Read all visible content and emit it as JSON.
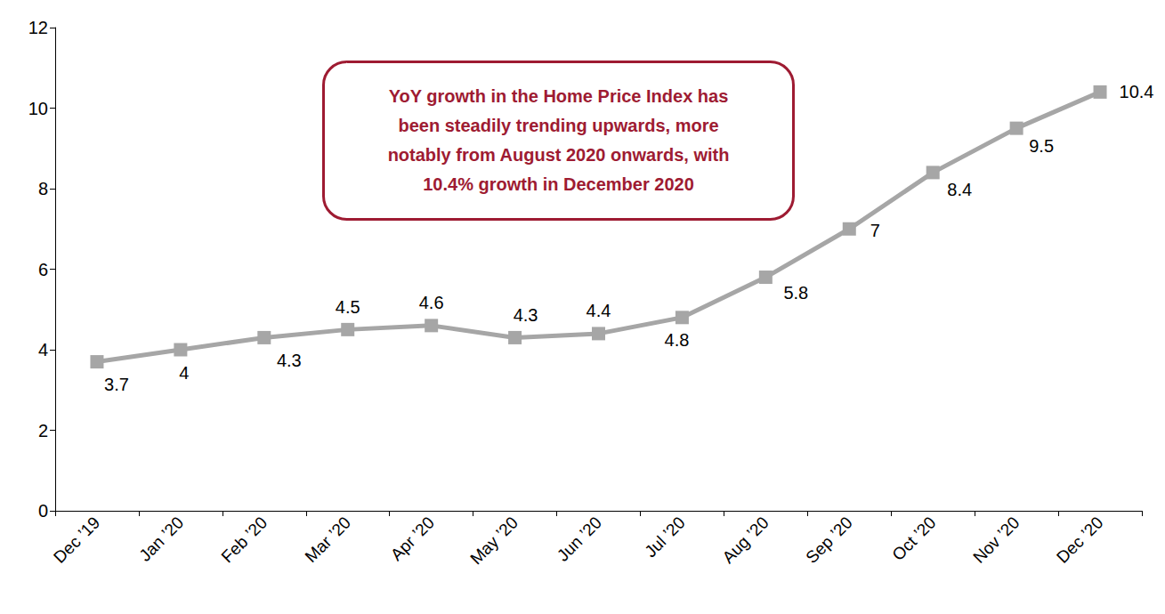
{
  "chart_data": {
    "type": "line",
    "categories": [
      "Dec ’19",
      "Jan ’20",
      "Feb ’20",
      "Mar ’20",
      "Apr ’20",
      "May ’20",
      "Jun ’20",
      "Jul ’20",
      "Aug ’20",
      "Sep ’20",
      "Oct ’20",
      "Nov ’20",
      "Dec ’20"
    ],
    "values": [
      3.7,
      4,
      4.3,
      4.5,
      4.6,
      4.3,
      4.4,
      4.8,
      5.8,
      7,
      8.4,
      9.5,
      10.4
    ],
    "color": "#a6a6a6",
    "marker": "square",
    "line_style": "solid",
    "ylim": [
      0,
      12
    ],
    "yticks": [
      0,
      2,
      4,
      6,
      8,
      10,
      12
    ],
    "grid": false,
    "data_labels": true,
    "annotation": [
      "YoY growth in the Home Price Index has",
      "been steadily trending upwards, more",
      "notably from August 2020 onwards, with",
      "10.4% growth in December 2020"
    ]
  }
}
